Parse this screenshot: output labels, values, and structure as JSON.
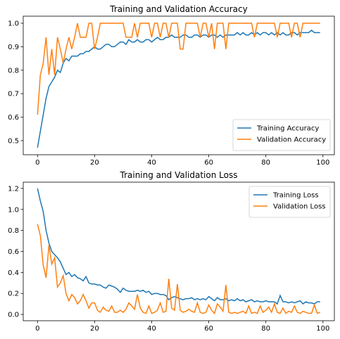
{
  "chart_data": [
    {
      "type": "line",
      "title": "Training and Validation Accuracy",
      "xlim": [
        -5,
        104
      ],
      "ylim": [
        0.44,
        1.03
      ],
      "xticks": [
        0,
        20,
        40,
        60,
        80,
        100
      ],
      "yticks": [
        0.5,
        0.6,
        0.7,
        0.8,
        0.9,
        1.0
      ],
      "ytick_labels": [
        "0.5",
        "0.6",
        "0.7",
        "0.8",
        "0.9",
        "1.0"
      ],
      "legend_loc": "lower-right",
      "series": [
        {
          "name": "Training Accuracy",
          "color": "#1f77b4",
          "values": [
            0.47,
            0.54,
            0.61,
            0.68,
            0.73,
            0.75,
            0.77,
            0.8,
            0.79,
            0.83,
            0.85,
            0.84,
            0.86,
            0.86,
            0.86,
            0.87,
            0.87,
            0.88,
            0.88,
            0.89,
            0.9,
            0.89,
            0.89,
            0.9,
            0.91,
            0.91,
            0.9,
            0.9,
            0.91,
            0.92,
            0.92,
            0.91,
            0.93,
            0.92,
            0.92,
            0.93,
            0.92,
            0.92,
            0.93,
            0.93,
            0.92,
            0.93,
            0.94,
            0.93,
            0.93,
            0.94,
            0.94,
            0.95,
            0.94,
            0.94,
            0.94,
            0.95,
            0.95,
            0.94,
            0.94,
            0.95,
            0.95,
            0.94,
            0.95,
            0.95,
            0.94,
            0.95,
            0.95,
            0.94,
            0.95,
            0.94,
            0.95,
            0.95,
            0.95,
            0.95,
            0.96,
            0.95,
            0.96,
            0.95,
            0.95,
            0.96,
            0.95,
            0.96,
            0.95,
            0.96,
            0.96,
            0.95,
            0.96,
            0.95,
            0.96,
            0.95,
            0.96,
            0.95,
            0.95,
            0.96,
            0.96,
            0.95,
            0.96,
            0.96,
            0.96,
            0.96,
            0.97,
            0.96,
            0.96,
            0.96
          ]
        },
        {
          "name": "Validation Accuracy",
          "color": "#ff7f0e",
          "values": [
            0.61,
            0.78,
            0.83,
            0.94,
            0.78,
            0.89,
            0.78,
            0.94,
            0.89,
            0.83,
            0.89,
            0.94,
            0.89,
            0.94,
            1.0,
            0.94,
            0.94,
            0.94,
            1.0,
            1.0,
            0.89,
            0.94,
            1.0,
            1.0,
            1.0,
            1.0,
            1.0,
            1.0,
            1.0,
            1.0,
            1.0,
            0.94,
            0.94,
            0.94,
            1.0,
            0.94,
            1.0,
            1.0,
            1.0,
            1.0,
            0.94,
            1.0,
            1.0,
            0.94,
            1.0,
            1.0,
            0.94,
            1.0,
            1.0,
            1.0,
            0.89,
            0.89,
            1.0,
            1.0,
            1.0,
            1.0,
            1.0,
            0.94,
            1.0,
            1.0,
            0.94,
            1.0,
            0.89,
            1.0,
            1.0,
            1.0,
            0.89,
            1.0,
            1.0,
            1.0,
            1.0,
            1.0,
            1.0,
            1.0,
            1.0,
            1.0,
            0.94,
            1.0,
            1.0,
            1.0,
            1.0,
            1.0,
            1.0,
            1.0,
            0.94,
            1.0,
            1.0,
            1.0,
            1.0,
            0.94,
            1.0,
            1.0,
            0.94,
            1.0,
            1.0,
            1.0,
            1.0,
            1.0,
            1.0,
            1.0
          ]
        }
      ]
    },
    {
      "type": "line",
      "title": "Training and Validation Loss",
      "xlim": [
        -5,
        104
      ],
      "ylim": [
        -0.06,
        1.26
      ],
      "xticks": [
        0,
        20,
        40,
        60,
        80,
        100
      ],
      "yticks": [
        0.0,
        0.2,
        0.4,
        0.6,
        0.8,
        1.0,
        1.2
      ],
      "ytick_labels": [
        "0.0",
        "0.2",
        "0.4",
        "0.6",
        "0.8",
        "1.0",
        "1.2"
      ],
      "legend_loc": "upper-right",
      "series": [
        {
          "name": "Training Loss",
          "color": "#1f77b4",
          "values": [
            1.2,
            1.08,
            0.98,
            0.8,
            0.68,
            0.6,
            0.57,
            0.54,
            0.5,
            0.44,
            0.38,
            0.4,
            0.36,
            0.38,
            0.35,
            0.34,
            0.32,
            0.36,
            0.3,
            0.29,
            0.29,
            0.28,
            0.28,
            0.26,
            0.25,
            0.28,
            0.27,
            0.26,
            0.24,
            0.21,
            0.25,
            0.23,
            0.22,
            0.22,
            0.22,
            0.23,
            0.22,
            0.23,
            0.21,
            0.22,
            0.19,
            0.2,
            0.2,
            0.19,
            0.19,
            0.18,
            0.14,
            0.16,
            0.17,
            0.16,
            0.15,
            0.14,
            0.15,
            0.15,
            0.16,
            0.14,
            0.15,
            0.14,
            0.15,
            0.14,
            0.17,
            0.15,
            0.13,
            0.16,
            0.14,
            0.14,
            0.15,
            0.13,
            0.14,
            0.13,
            0.15,
            0.13,
            0.14,
            0.12,
            0.13,
            0.14,
            0.12,
            0.13,
            0.12,
            0.12,
            0.13,
            0.12,
            0.12,
            0.12,
            0.1,
            0.18,
            0.12,
            0.12,
            0.11,
            0.12,
            0.11,
            0.12,
            0.13,
            0.1,
            0.12,
            0.11,
            0.11,
            0.1,
            0.12,
            0.12
          ]
        },
        {
          "name": "Validation Loss",
          "color": "#ff7f0e",
          "values": [
            0.86,
            0.75,
            0.47,
            0.35,
            0.66,
            0.48,
            0.54,
            0.26,
            0.3,
            0.37,
            0.2,
            0.13,
            0.19,
            0.16,
            0.1,
            0.13,
            0.19,
            0.13,
            0.06,
            0.11,
            0.11,
            0.04,
            0.02,
            0.07,
            0.04,
            0.03,
            0.08,
            0.02,
            0.02,
            0.04,
            0.02,
            0.05,
            0.11,
            0.08,
            0.05,
            0.19,
            0.06,
            0.02,
            0.01,
            0.08,
            0.01,
            0.02,
            0.04,
            0.11,
            0.02,
            0.03,
            0.34,
            0.06,
            0.04,
            0.29,
            0.04,
            0.02,
            0.03,
            0.05,
            0.03,
            0.02,
            0.11,
            0.02,
            0.01,
            0.02,
            0.09,
            0.04,
            0.01,
            0.1,
            0.07,
            0.03,
            0.28,
            0.02,
            0.01,
            0.02,
            0.01,
            0.02,
            0.03,
            0.01,
            0.08,
            0.01,
            0.02,
            0.01,
            0.08,
            0.02,
            0.04,
            0.07,
            0.02,
            0.1,
            0.02,
            0.01,
            0.06,
            0.01,
            0.03,
            0.02,
            0.08,
            0.02,
            0.01,
            0.03,
            0.02,
            0.01,
            0.01,
            0.09,
            0.01,
            0.02
          ]
        }
      ]
    }
  ]
}
